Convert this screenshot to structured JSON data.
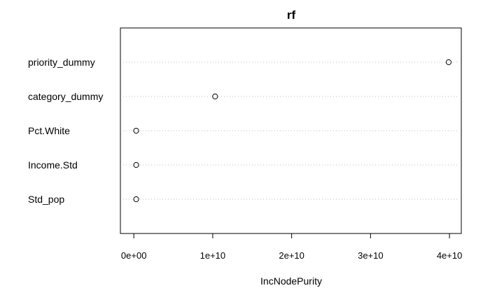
{
  "chart_data": {
    "type": "scatter",
    "title": "rf",
    "xlabel": "IncNodePurity",
    "ylabel": "",
    "xlim": [
      -1700000000.0,
      41500000000.0
    ],
    "x_ticks": [
      0,
      10000000000,
      20000000000,
      30000000000,
      40000000000
    ],
    "x_tick_labels": [
      "0e+00",
      "1e+10",
      "2e+10",
      "3e+10",
      "4e+10"
    ],
    "categories": [
      "priority_dummy",
      "category_dummy",
      "Pct.White",
      "Income.Std",
      "Std_pop"
    ],
    "values": [
      39900000000,
      10300000000,
      300000000,
      300000000,
      300000000
    ],
    "grid": "dotted horizontal lines per row",
    "legend": "none",
    "marker": "open-circle",
    "colors": {
      "axis": "#000000",
      "grid": "#bebebe",
      "marker": "#000000"
    }
  }
}
